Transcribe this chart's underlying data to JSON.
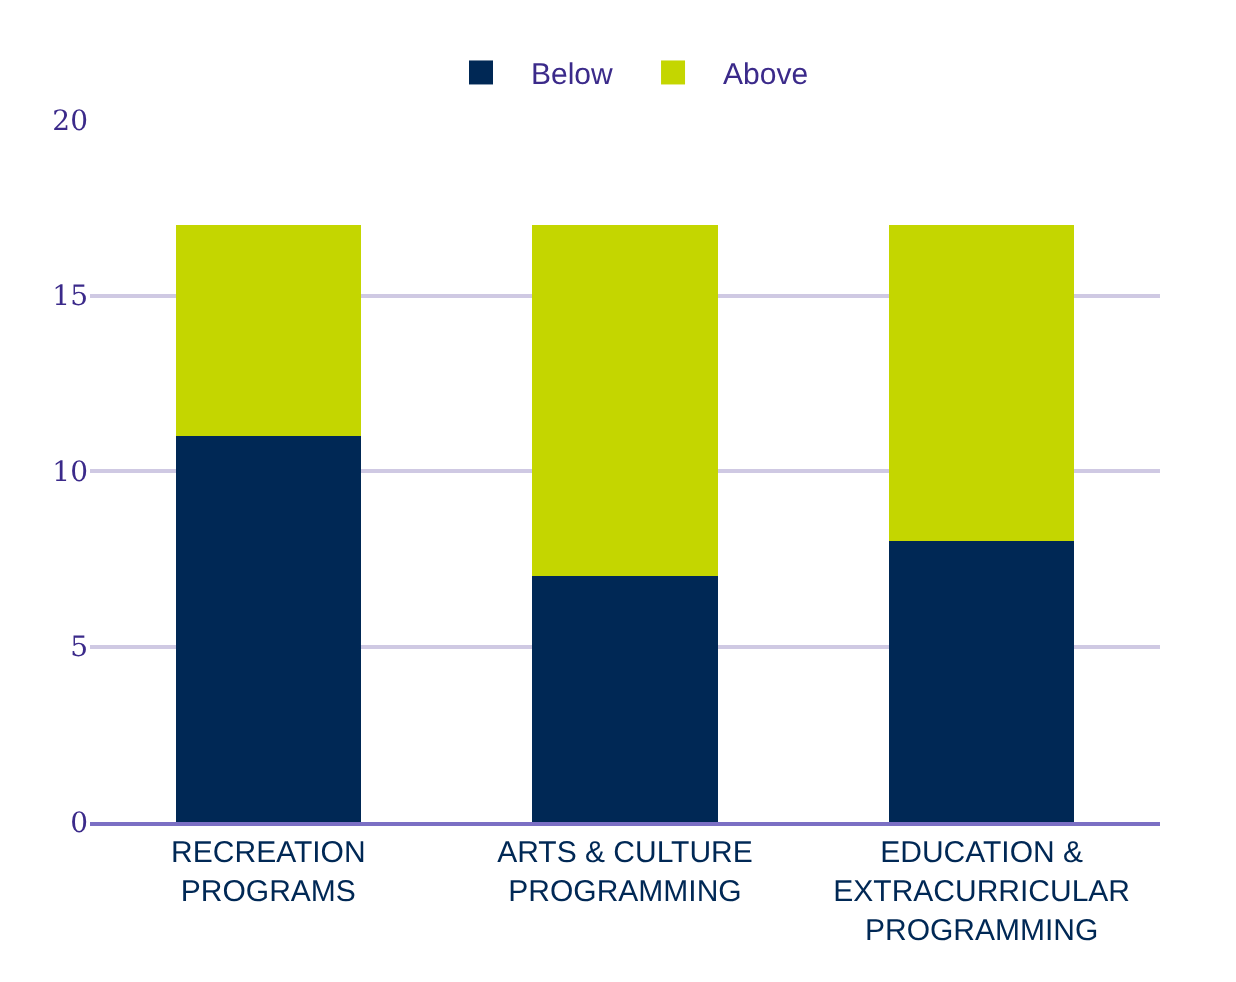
{
  "chart_data": {
    "type": "bar",
    "stacked": true,
    "categories": [
      "RECREATION PROGRAMS",
      "ARTS & CULTURE PROGRAMMING",
      "EDUCATION & EXTRACURRICULAR PROGRAMMING"
    ],
    "series": [
      {
        "name": "Below",
        "color": "#002855",
        "values": [
          11,
          7,
          8
        ]
      },
      {
        "name": "Above",
        "color": "#c4d600",
        "values": [
          6,
          10,
          9
        ]
      }
    ],
    "ylim": [
      0,
      20
    ],
    "yticks": [
      0,
      5,
      10,
      15,
      20
    ],
    "grid": "y",
    "legend": "top"
  }
}
